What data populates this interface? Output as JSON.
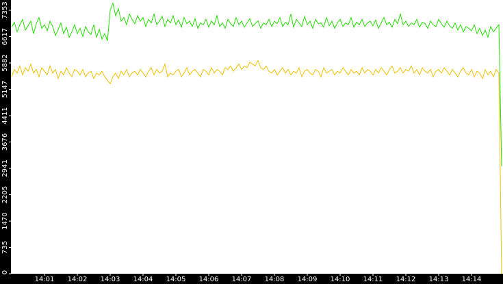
{
  "chart_data": {
    "type": "line",
    "categories": [
      null,
      null,
      null,
      null,
      null,
      null,
      null,
      null,
      null,
      null,
      null,
      null,
      "14:01",
      null,
      null,
      null,
      null,
      null,
      null,
      null,
      null,
      null,
      null,
      null,
      "14:02",
      null,
      null,
      null,
      null,
      null,
      null,
      null,
      null,
      null,
      null,
      null,
      "14:03",
      null,
      null,
      null,
      null,
      null,
      null,
      null,
      null,
      null,
      null,
      null,
      "14:04",
      null,
      null,
      null,
      null,
      null,
      null,
      null,
      null,
      null,
      null,
      null,
      "14:05",
      null,
      null,
      null,
      null,
      null,
      null,
      null,
      null,
      null,
      null,
      null,
      "14:06",
      null,
      null,
      null,
      null,
      null,
      null,
      null,
      null,
      null,
      null,
      null,
      "14:07",
      null,
      null,
      null,
      null,
      null,
      null,
      null,
      null,
      null,
      null,
      null,
      "14:08",
      null,
      null,
      null,
      null,
      null,
      null,
      null,
      null,
      null,
      null,
      null,
      "14:09",
      null,
      null,
      null,
      null,
      null,
      null,
      null,
      null,
      null,
      null,
      null,
      "14:10",
      null,
      null,
      null,
      null,
      null,
      null,
      null,
      null,
      null,
      null,
      null,
      "14:11",
      null,
      null,
      null,
      null,
      null,
      null,
      null,
      null,
      null,
      null,
      null,
      "14:12",
      null,
      null,
      null,
      null,
      null,
      null,
      null,
      null,
      null,
      null,
      null,
      "14:13",
      null,
      null,
      null,
      null,
      null,
      null,
      null,
      null,
      null,
      null,
      null,
      "14:14",
      null,
      null,
      null,
      null,
      null,
      null,
      null,
      null,
      null,
      null,
      null
    ],
    "series": [
      {
        "color": "#22dd00",
        "values": [
          6880,
          7020,
          6750,
          6950,
          7100,
          6800,
          6920,
          7050,
          6700,
          6980,
          7150,
          6850,
          6950,
          6780,
          7050,
          6900,
          6650,
          6820,
          7000,
          6700,
          6880,
          6600,
          6750,
          6950,
          6700,
          6850,
          6620,
          6900,
          6750,
          6680,
          6950,
          6600,
          6820,
          6550,
          6700,
          6500,
          7350,
          7550,
          7200,
          7400,
          7050,
          7150,
          6950,
          7250,
          7100,
          6980,
          7200,
          7050,
          7150,
          6900,
          7100,
          7000,
          7250,
          6950,
          7050,
          7180,
          6900,
          7100,
          7000,
          7200,
          6950,
          7080,
          6880,
          7150,
          6980,
          7050,
          6900,
          7120,
          6850,
          7000,
          6950,
          7100,
          6880,
          7050,
          6950,
          7200,
          6900,
          7000,
          6850,
          7100,
          6980,
          6900,
          7150,
          6950,
          7050,
          6880,
          7000,
          7120,
          6900,
          6980,
          7060,
          6850,
          7000,
          6950,
          7100,
          6900,
          7050,
          6980,
          7150,
          6900,
          7020,
          6950,
          7250,
          6880,
          7100,
          7000,
          6900,
          7180,
          6950,
          7050,
          6850,
          7100,
          6980,
          7000,
          6880,
          7150,
          6920,
          7050,
          6850,
          7000,
          7100,
          6900,
          7000,
          6950,
          7150,
          6880,
          7020,
          6950,
          7100,
          6900,
          7000,
          7050,
          6920,
          7080,
          6850,
          7000,
          7150,
          6950,
          7020,
          6880,
          7100,
          6980,
          7250,
          6950,
          7050,
          6900,
          7000,
          6950,
          7100,
          6880,
          7020,
          6980,
          6850,
          7050,
          6950,
          6900,
          7100,
          6980,
          6880,
          7050,
          6920,
          6850,
          7000,
          6800,
          6950,
          6750,
          6900,
          6850,
          6780,
          6950,
          6700,
          6850,
          6650,
          6800,
          6600,
          6900,
          6750,
          6850,
          6950,
          3000
        ]
      },
      {
        "color": "#f0c000",
        "values": [
          5500,
          5700,
          5600,
          5800,
          5550,
          5750,
          5650,
          5850,
          5600,
          5700,
          5500,
          5750,
          5650,
          5550,
          5800,
          5600,
          5700,
          5450,
          5650,
          5550,
          5750,
          5600,
          5500,
          5700,
          5650,
          5550,
          5700,
          5500,
          5600,
          5650,
          5450,
          5600,
          5550,
          5650,
          5500,
          5400,
          5300,
          5500,
          5600,
          5450,
          5650,
          5550,
          5700,
          5500,
          5600,
          5650,
          5550,
          5700,
          5600,
          5500,
          5650,
          5750,
          5550,
          5700,
          5600,
          5650,
          5850,
          5500,
          5600,
          5550,
          5650,
          5700,
          5500,
          5600,
          5750,
          5550,
          5650,
          5700,
          5600,
          5500,
          5700,
          5650,
          5550,
          5750,
          5600,
          5700,
          5650,
          5550,
          5750,
          5700,
          5800,
          5650,
          5750,
          5850,
          5700,
          5800,
          5750,
          5900,
          5850,
          5800,
          5950,
          5750,
          5700,
          5800,
          5650,
          5600,
          5700,
          5550,
          5650,
          5750,
          5600,
          5700,
          5550,
          5650,
          5600,
          5750,
          5500,
          5650,
          5700,
          5600,
          5550,
          5700,
          5650,
          5500,
          5750,
          5600,
          5650,
          5700,
          5550,
          5650,
          5600,
          5750,
          5650,
          5550,
          5700,
          5600,
          5650,
          5550,
          5750,
          5600,
          5700,
          5650,
          5550,
          5700,
          5600,
          5750,
          5650,
          5550,
          5700,
          5800,
          5600,
          5650,
          5750,
          5600,
          5700,
          5650,
          5800,
          5600,
          5700,
          5550,
          5750,
          5650,
          5600,
          5700,
          5500,
          5650,
          5700,
          5600,
          5750,
          5650,
          5550,
          5700,
          5600,
          5500,
          5650,
          5750,
          5600,
          5550,
          5700,
          5500,
          5650,
          5600,
          5450,
          5700,
          5550,
          5650,
          5500,
          5700,
          5600,
          0
        ]
      }
    ],
    "ylim": [
      0,
      7640
    ],
    "yticks": [
      0,
      735,
      1470,
      2205,
      2941,
      3676,
      4411,
      5147,
      5882,
      6617,
      7353
    ]
  }
}
